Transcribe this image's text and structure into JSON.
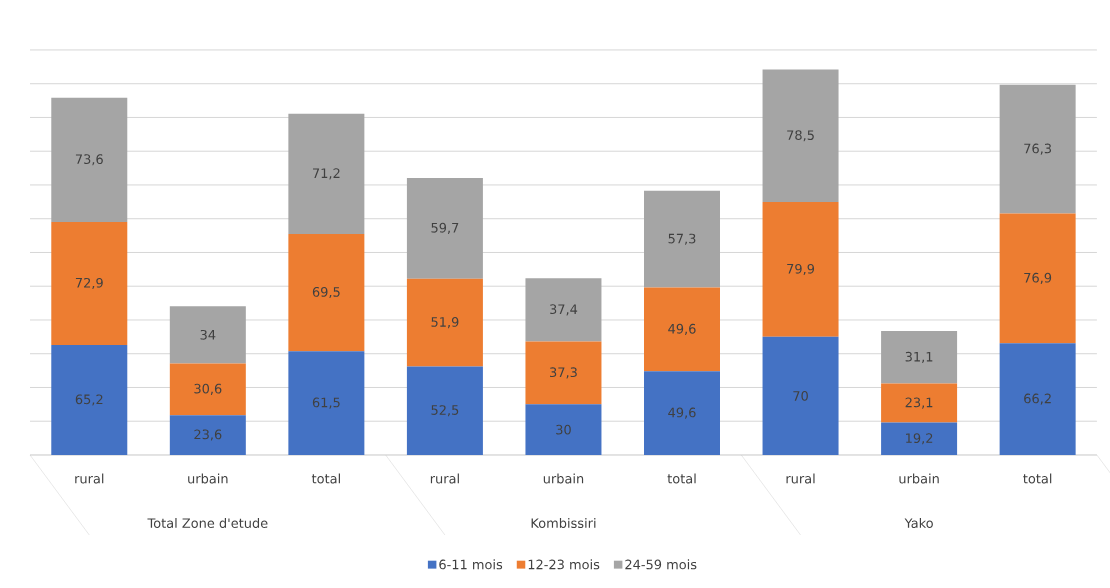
{
  "chart_data": {
    "type": "bar",
    "stacked": true,
    "categories": [
      "rural",
      "urbain",
      "total",
      "rural",
      "urbain",
      "total",
      "rural",
      "urbain",
      "total"
    ],
    "annotations": [
      "Total Zone d'etude",
      "Kombissiri",
      "Yako"
    ],
    "series": [
      {
        "name": "6-11 mois",
        "color": "#4472c4",
        "values": [
          65.2,
          23.6,
          61.5,
          52.5,
          30,
          49.6,
          70,
          19.2,
          66.2
        ],
        "value_labels": [
          "65,2",
          "23,6",
          "61,5",
          "52,5",
          "30",
          "49,6",
          "70",
          "19,2",
          "66,2"
        ]
      },
      {
        "name": "12-23 mois",
        "color": "#ed7d31",
        "values": [
          72.9,
          30.6,
          69.5,
          51.9,
          37.3,
          49.6,
          79.9,
          23.1,
          76.9
        ],
        "value_labels": [
          "72,9",
          "30,6",
          "69,5",
          "51,9",
          "37,3",
          "49,6",
          "79,9",
          "23,1",
          "76,9"
        ]
      },
      {
        "name": "24-59 mois",
        "color": "#a5a5a5",
        "values": [
          73.6,
          34,
          71.2,
          59.7,
          37.4,
          57.3,
          78.5,
          31.1,
          76.3
        ],
        "value_labels": [
          "73,6",
          "34",
          "71,2",
          "59,7",
          "37,4",
          "57,3",
          "78,5",
          "31,1",
          "76,3"
        ]
      }
    ],
    "tick_labels": "x",
    "grid": "y",
    "legend": "bottom"
  }
}
